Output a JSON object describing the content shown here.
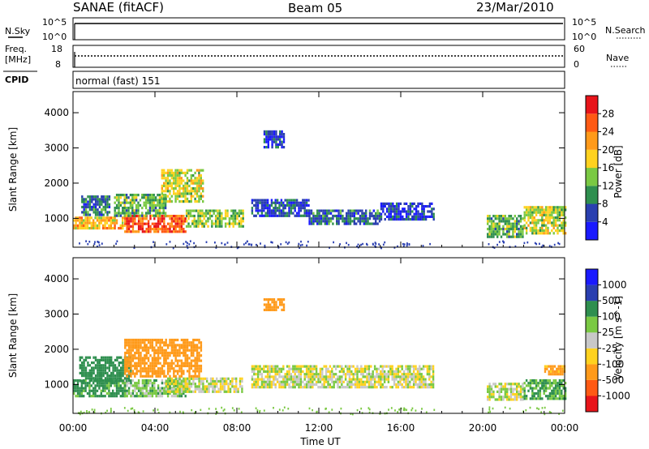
{
  "header": {
    "station": "SANAE (fitACF)",
    "beam": "Beam 05",
    "date": "23/Mar/2010"
  },
  "top_panels": {
    "nsky_label": "N.Sky",
    "nsky_ticks": [
      "10^5",
      "10^0"
    ],
    "nsearch_label": "N.Search",
    "nsearch_ticks": [
      "10^5",
      "10^0"
    ],
    "freq_label_1": "Freq.",
    "freq_label_2": "[MHz]",
    "freq_ticks": [
      "18",
      "8"
    ],
    "nave_label": "Nave",
    "nave_ticks": [
      "60",
      "0"
    ],
    "cpid_label": "CPID",
    "cpid_value": "normal (fast) 151"
  },
  "colors": {
    "power_scale": [
      "#1a1aff",
      "#2a3fb0",
      "#2f8f4f",
      "#7ac943",
      "#ffd21f",
      "#ff9a1a",
      "#ff5a14",
      "#e8141a"
    ],
    "velocity_scale": [
      "#1a1aff",
      "#2a3fb0",
      "#2f8f4f",
      "#7ac943",
      "#c8c8c8",
      "#ffd21f",
      "#ff9a1a",
      "#ff5a14",
      "#e8141a"
    ]
  },
  "chart_data": [
    {
      "type": "heatmap",
      "name": "power",
      "xlabel": "Time UT",
      "ylabel": "Slant Range [km]",
      "colorbar_label": "Power [dB]",
      "colorbar_ticks": [
        "28",
        "24",
        "20",
        "16",
        "12",
        "8",
        "4"
      ],
      "yticks": [
        "4000",
        "3000",
        "2000",
        "1000"
      ],
      "ylim": [
        180,
        4600
      ],
      "xlim": [
        0,
        24
      ],
      "xticks": [
        "00:00",
        "04:00",
        "08:00",
        "12:00",
        "16:00",
        "20:00",
        "00:00"
      ],
      "regions": [
        {
          "t0": 0.0,
          "t1": 2.5,
          "r0": 700,
          "r1": 1050,
          "level": 20
        },
        {
          "t0": 2.5,
          "t1": 5.5,
          "r0": 650,
          "r1": 1100,
          "level": 26
        },
        {
          "t0": 5.5,
          "t1": 8.3,
          "r0": 750,
          "r1": 1250,
          "level": 14
        },
        {
          "t0": 0.4,
          "t1": 1.8,
          "r0": 1100,
          "r1": 1650,
          "level": 8
        },
        {
          "t0": 2.0,
          "t1": 4.5,
          "r0": 1050,
          "r1": 1700,
          "level": 12
        },
        {
          "t0": 4.3,
          "t1": 6.3,
          "r0": 1500,
          "r1": 2400,
          "level": 16
        },
        {
          "t0": 8.7,
          "t1": 11.5,
          "r0": 1050,
          "r1": 1550,
          "level": 6
        },
        {
          "t0": 11.5,
          "t1": 15.0,
          "r0": 880,
          "r1": 1250,
          "level": 8
        },
        {
          "t0": 15.0,
          "t1": 17.6,
          "r0": 950,
          "r1": 1450,
          "level": 5
        },
        {
          "t0": 9.3,
          "t1": 10.3,
          "r0": 3000,
          "r1": 3500,
          "level": 5
        },
        {
          "t0": 20.2,
          "t1": 22.0,
          "r0": 500,
          "r1": 1100,
          "level": 12
        },
        {
          "t0": 22.0,
          "t1": 24.0,
          "r0": 600,
          "r1": 1350,
          "level": 16
        }
      ]
    },
    {
      "type": "heatmap",
      "name": "velocity",
      "xlabel": "Time UT",
      "ylabel": "Slant Range [km]",
      "colorbar_label": "Velocity [m s^-1]",
      "colorbar_ticks": [
        "1000",
        "500",
        "100",
        "25",
        "-25",
        "-100",
        "-500",
        "-1000"
      ],
      "yticks": [
        "4000",
        "3000",
        "2000",
        "1000"
      ],
      "ylim": [
        180,
        4600
      ],
      "xlim": [
        0,
        24
      ],
      "xticks": [
        "00:00",
        "04:00",
        "08:00",
        "12:00",
        "16:00",
        "20:00",
        "00:00"
      ],
      "regions": [
        {
          "t0": 0.0,
          "t1": 2.5,
          "r0": 650,
          "r1": 1150,
          "level": 150
        },
        {
          "t0": 2.5,
          "t1": 5.5,
          "r0": 650,
          "r1": 1150,
          "level": 60
        },
        {
          "t0": 4.5,
          "t1": 8.3,
          "r0": 800,
          "r1": 1200,
          "level": 0
        },
        {
          "t0": 0.3,
          "t1": 2.8,
          "r0": 1100,
          "r1": 1800,
          "level": 300
        },
        {
          "t0": 2.5,
          "t1": 6.3,
          "r0": 1200,
          "r1": 2300,
          "level": -200
        },
        {
          "t0": 8.7,
          "t1": 17.6,
          "r0": 900,
          "r1": 1550,
          "level": 0
        },
        {
          "t0": 9.3,
          "t1": 10.3,
          "r0": 3100,
          "r1": 3450,
          "level": -300
        },
        {
          "t0": 20.2,
          "t1": 22.0,
          "r0": 600,
          "r1": 1050,
          "level": 10
        },
        {
          "t0": 22.0,
          "t1": 24.0,
          "r0": 600,
          "r1": 1150,
          "level": 120
        },
        {
          "t0": 23.0,
          "t1": 24.0,
          "r0": 1300,
          "r1": 1550,
          "level": -150
        }
      ]
    }
  ]
}
